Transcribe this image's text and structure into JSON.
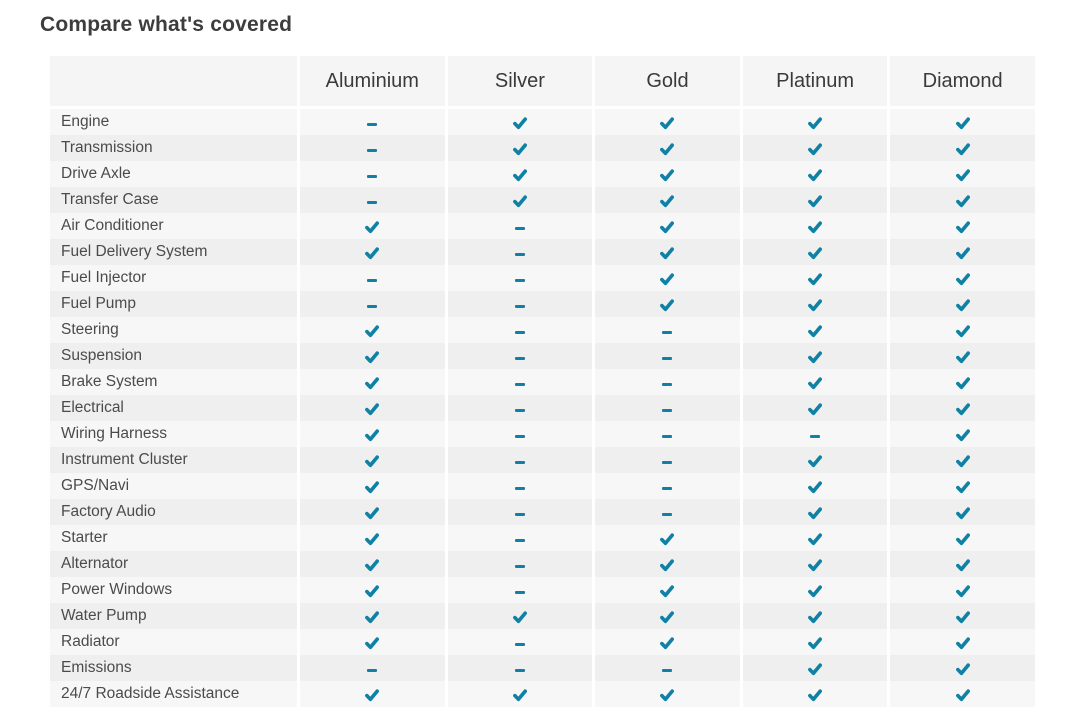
{
  "page": {
    "title": "Compare what's covered"
  },
  "colors": {
    "accent": "#0e81a5",
    "header_bg": "#f5f5f5",
    "row_odd_bg": "#f7f7f7",
    "row_even_bg": "#efefef",
    "title_text": "#3d3d3d",
    "header_text": "#3a3a3a",
    "label_text": "#4b4b4b"
  },
  "icons": {
    "covered": "check-icon",
    "not_covered": "dash-icon"
  },
  "table": {
    "plans": [
      "Aluminium",
      "Silver",
      "Gold",
      "Platinum",
      "Diamond"
    ],
    "rows": [
      {
        "label": "Engine",
        "coverage": [
          false,
          true,
          true,
          true,
          true
        ]
      },
      {
        "label": "Transmission",
        "coverage": [
          false,
          true,
          true,
          true,
          true
        ]
      },
      {
        "label": "Drive Axle",
        "coverage": [
          false,
          true,
          true,
          true,
          true
        ]
      },
      {
        "label": "Transfer Case",
        "coverage": [
          false,
          true,
          true,
          true,
          true
        ]
      },
      {
        "label": "Air Conditioner",
        "coverage": [
          true,
          false,
          true,
          true,
          true
        ]
      },
      {
        "label": "Fuel Delivery System",
        "coverage": [
          true,
          false,
          true,
          true,
          true
        ]
      },
      {
        "label": "Fuel Injector",
        "coverage": [
          false,
          false,
          true,
          true,
          true
        ]
      },
      {
        "label": "Fuel Pump",
        "coverage": [
          false,
          false,
          true,
          true,
          true
        ]
      },
      {
        "label": "Steering",
        "coverage": [
          true,
          false,
          false,
          true,
          true
        ]
      },
      {
        "label": "Suspension",
        "coverage": [
          true,
          false,
          false,
          true,
          true
        ]
      },
      {
        "label": "Brake System",
        "coverage": [
          true,
          false,
          false,
          true,
          true
        ]
      },
      {
        "label": "Electrical",
        "coverage": [
          true,
          false,
          false,
          true,
          true
        ]
      },
      {
        "label": "Wiring Harness",
        "coverage": [
          true,
          false,
          false,
          false,
          true
        ]
      },
      {
        "label": "Instrument Cluster",
        "coverage": [
          true,
          false,
          false,
          true,
          true
        ]
      },
      {
        "label": "GPS/Navi",
        "coverage": [
          true,
          false,
          false,
          true,
          true
        ]
      },
      {
        "label": "Factory Audio",
        "coverage": [
          true,
          false,
          false,
          true,
          true
        ]
      },
      {
        "label": "Starter",
        "coverage": [
          true,
          false,
          true,
          true,
          true
        ]
      },
      {
        "label": "Alternator",
        "coverage": [
          true,
          false,
          true,
          true,
          true
        ]
      },
      {
        "label": "Power Windows",
        "coverage": [
          true,
          false,
          true,
          true,
          true
        ]
      },
      {
        "label": "Water Pump",
        "coverage": [
          true,
          true,
          true,
          true,
          true
        ]
      },
      {
        "label": "Radiator",
        "coverage": [
          true,
          false,
          true,
          true,
          true
        ]
      },
      {
        "label": "Emissions",
        "coverage": [
          false,
          false,
          false,
          true,
          true
        ]
      },
      {
        "label": "24/7 Roadside Assistance",
        "coverage": [
          true,
          true,
          true,
          true,
          true
        ]
      }
    ]
  }
}
